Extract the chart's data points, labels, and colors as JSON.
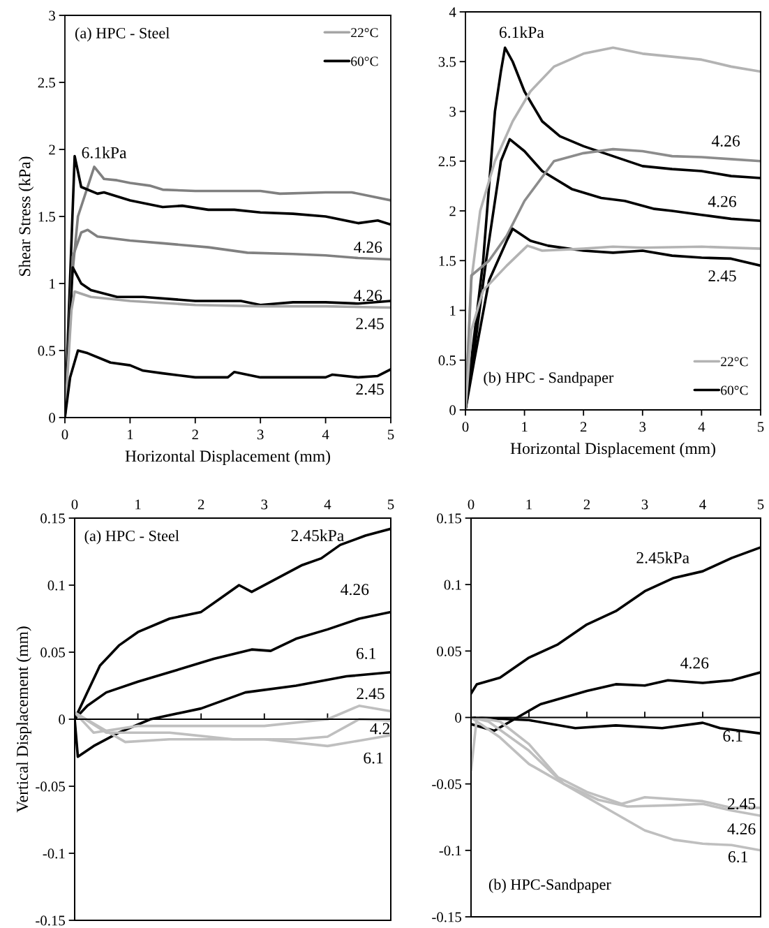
{
  "chart_data": [
    {
      "type": "line",
      "title": "(a) HPC - Steel",
      "xlabel": "Horizontal Displacement (mm)",
      "ylabel": "Shear Stress (kPa)",
      "xlim": [
        0,
        5
      ],
      "ylim": [
        0,
        3
      ],
      "xticks": [
        0,
        1,
        2,
        3,
        4,
        5
      ],
      "yticks": [
        0,
        0.5,
        1,
        1.5,
        2,
        2.5,
        3
      ],
      "legend": "top right",
      "grid": false,
      "series": [
        {
          "color": "#808080",
          "x": [
            0,
            0.1,
            0.2,
            0.45,
            0.6,
            0.8,
            1,
            1.3,
            1.5,
            2,
            3,
            3.3,
            4,
            4.4,
            5
          ],
          "values": [
            0,
            1.0,
            1.5,
            1.87,
            1.78,
            1.77,
            1.75,
            1.73,
            1.7,
            1.69,
            1.69,
            1.67,
            1.68,
            1.68,
            1.62
          ]
        },
        {
          "name": "60°C",
          "color": "#000000",
          "x": [
            0,
            0.15,
            0.25,
            0.5,
            0.6,
            1,
            1.5,
            1.8,
            2.2,
            2.6,
            3,
            3.5,
            4,
            4.5,
            4.8,
            5
          ],
          "values": [
            0,
            1.95,
            1.72,
            1.67,
            1.68,
            1.62,
            1.57,
            1.58,
            1.55,
            1.55,
            1.53,
            1.52,
            1.5,
            1.45,
            1.47,
            1.44
          ]
        },
        {
          "color": "#808080",
          "x": [
            0,
            0.12,
            0.25,
            0.35,
            0.5,
            1,
            1.5,
            2.2,
            2.8,
            3.5,
            4,
            4.5,
            5
          ],
          "values": [
            0,
            1.2,
            1.38,
            1.4,
            1.35,
            1.32,
            1.3,
            1.27,
            1.23,
            1.22,
            1.21,
            1.19,
            1.18
          ]
        },
        {
          "color": "#000000",
          "x": [
            0,
            0.12,
            0.25,
            0.4,
            0.8,
            1.2,
            2,
            2.7,
            3,
            3.5,
            4,
            4.5,
            5
          ],
          "values": [
            0,
            1.12,
            1.0,
            0.95,
            0.9,
            0.9,
            0.87,
            0.87,
            0.84,
            0.86,
            0.86,
            0.85,
            0.87
          ]
        },
        {
          "name": "22°C",
          "color": "#a6a6a6",
          "x": [
            0,
            0.1,
            0.15,
            0.4,
            1,
            2,
            3,
            4,
            5
          ],
          "values": [
            0,
            0.8,
            0.94,
            0.9,
            0.87,
            0.84,
            0.83,
            0.83,
            0.82
          ]
        },
        {
          "color": "#000000",
          "x": [
            0,
            0.08,
            0.2,
            0.35,
            0.7,
            1,
            1.2,
            1.5,
            2,
            2.5,
            2.6,
            3,
            3.5,
            4,
            4.1,
            4.5,
            4.8,
            5
          ],
          "values": [
            0,
            0.3,
            0.5,
            0.48,
            0.41,
            0.39,
            0.35,
            0.33,
            0.3,
            0.3,
            0.34,
            0.3,
            0.3,
            0.3,
            0.32,
            0.3,
            0.31,
            0.36
          ]
        }
      ],
      "annotations": [
        "6.1kPa",
        "4.26",
        "4.26",
        "2.45",
        "2.45"
      ]
    },
    {
      "type": "line",
      "title": "(b) HPC - Sandpaper",
      "xlabel": "Horizontal Displacement (mm)",
      "xlim": [
        0,
        5
      ],
      "ylim": [
        0,
        4
      ],
      "xticks": [
        0,
        1,
        2,
        3,
        4,
        5
      ],
      "yticks": [
        0,
        0.5,
        1,
        1.5,
        2,
        2.5,
        3,
        3.5,
        4
      ],
      "legend": "bottom right",
      "grid": false,
      "series": [
        {
          "color": "#000000",
          "x": [
            0,
            0.1,
            0.3,
            0.5,
            0.6,
            0.67,
            0.8,
            1.0,
            1.3,
            1.6,
            2.0,
            2.5,
            3.0,
            3.5,
            4,
            4.5,
            5
          ],
          "values": [
            0,
            0.5,
            1.5,
            3.0,
            3.4,
            3.64,
            3.5,
            3.2,
            2.9,
            2.75,
            2.65,
            2.55,
            2.45,
            2.42,
            2.4,
            2.35,
            2.33
          ]
        },
        {
          "name": "22°C",
          "color": "#b3b3b3",
          "x": [
            0,
            0.1,
            0.25,
            0.5,
            0.8,
            1.1,
            1.5,
            2.0,
            2.5,
            3.0,
            3.5,
            4,
            4.5,
            5
          ],
          "values": [
            0,
            1.3,
            2.0,
            2.5,
            2.9,
            3.2,
            3.45,
            3.58,
            3.64,
            3.58,
            3.55,
            3.52,
            3.45,
            3.4
          ]
        },
        {
          "color": "#000000",
          "x": [
            0,
            0.15,
            0.35,
            0.6,
            0.75,
            1.0,
            1.3,
            1.8,
            2.3,
            2.7,
            3.2,
            3.5,
            4,
            4.5,
            5
          ],
          "values": [
            0,
            0.6,
            1.5,
            2.5,
            2.72,
            2.6,
            2.4,
            2.22,
            2.13,
            2.1,
            2.02,
            2.0,
            1.96,
            1.92,
            1.9
          ]
        },
        {
          "color": "#8c8c8c",
          "x": [
            0,
            0.1,
            0.2,
            0.4,
            0.7,
            1.0,
            1.5,
            2.0,
            2.5,
            3,
            3.5,
            4,
            4.5,
            5
          ],
          "values": [
            0,
            1.35,
            1.4,
            1.5,
            1.75,
            2.1,
            2.5,
            2.58,
            2.62,
            2.6,
            2.55,
            2.54,
            2.52,
            2.5
          ]
        },
        {
          "name": "60°C",
          "color": "#000000",
          "x": [
            0,
            0.15,
            0.4,
            0.7,
            0.8,
            1.1,
            1.4,
            2.0,
            2.5,
            3,
            3.5,
            4,
            4.5,
            5
          ],
          "values": [
            0,
            0.5,
            1.3,
            1.7,
            1.82,
            1.7,
            1.65,
            1.6,
            1.58,
            1.6,
            1.55,
            1.53,
            1.52,
            1.45
          ]
        },
        {
          "color": "#b3b3b3",
          "x": [
            0,
            0.1,
            0.3,
            0.7,
            1.05,
            1.3,
            2,
            2.5,
            3,
            4,
            5
          ],
          "values": [
            0,
            0.8,
            1.2,
            1.45,
            1.65,
            1.6,
            1.62,
            1.64,
            1.63,
            1.64,
            1.62
          ]
        }
      ],
      "annotations": [
        "6.1kPa",
        "4.26",
        "4.26",
        "2.45"
      ]
    },
    {
      "type": "line",
      "title": "(a) HPC - Steel",
      "ylabel": "Vertical Displacement (mm)",
      "ref_lines": [
        {
          "axis": "y",
          "value": 0,
          "color": "#000000"
        }
      ],
      "xlim": [
        0,
        5
      ],
      "ylim": [
        -0.15,
        0.15
      ],
      "xticks": [
        0,
        1,
        2,
        3,
        4,
        5
      ],
      "yticks": [
        -0.15,
        -0.1,
        -0.05,
        0,
        0.05,
        0.1,
        0.15
      ],
      "grid": false,
      "series": [
        {
          "color": "#000000",
          "x": [
            0,
            0.2,
            0.4,
            0.7,
            1.0,
            1.5,
            2.0,
            2.3,
            2.6,
            2.8,
            3.2,
            3.6,
            3.9,
            4.2,
            4.6,
            5
          ],
          "values": [
            0,
            0.02,
            0.04,
            0.055,
            0.065,
            0.075,
            0.08,
            0.09,
            0.1,
            0.095,
            0.105,
            0.115,
            0.12,
            0.13,
            0.137,
            0.142
          ]
        },
        {
          "color": "#000000",
          "x": [
            0,
            0.2,
            0.5,
            1.0,
            1.5,
            2.2,
            2.8,
            3.1,
            3.5,
            4,
            4.5,
            5
          ],
          "values": [
            0,
            0.01,
            0.02,
            0.028,
            0.035,
            0.045,
            0.052,
            0.051,
            0.06,
            0.067,
            0.075,
            0.08
          ]
        },
        {
          "color": "#000000",
          "x": [
            0,
            0.05,
            0.3,
            0.7,
            1.2,
            2.0,
            2.7,
            3.5,
            4.3,
            5
          ],
          "values": [
            0,
            -0.028,
            -0.02,
            -0.01,
            0,
            0.008,
            0.02,
            0.025,
            0.032,
            0.035
          ]
        },
        {
          "color": "#bfbfbf",
          "x": [
            0,
            0.3,
            1,
            2,
            3,
            4,
            4.5,
            5
          ],
          "values": [
            0.005,
            -0.01,
            -0.005,
            -0.005,
            -0.005,
            0,
            0.01,
            0.006
          ]
        },
        {
          "color": "#bfbfbf",
          "x": [
            0,
            0.5,
            1.5,
            2.5,
            3.5,
            4,
            4.5,
            5
          ],
          "values": [
            0.005,
            -0.01,
            -0.01,
            -0.015,
            -0.015,
            -0.013,
            0,
            -0.001
          ]
        },
        {
          "color": "#bfbfbf",
          "x": [
            0,
            0.8,
            1.5,
            3,
            4,
            4.5,
            5
          ],
          "values": [
            0.005,
            -0.017,
            -0.015,
            -0.015,
            -0.02,
            -0.016,
            -0.012
          ]
        }
      ],
      "annotations": [
        "2.45kPa",
        "4.26",
        "6.1",
        "2.45",
        "4.2",
        "6.1"
      ]
    },
    {
      "type": "line",
      "title": "(b) HPC-Sandpaper",
      "ref_lines": [
        {
          "axis": "y",
          "value": 0,
          "color": "#000000"
        }
      ],
      "xlim": [
        0,
        5
      ],
      "ylim": [
        -0.15,
        0.15
      ],
      "xticks": [
        0,
        1,
        2,
        3,
        4,
        5
      ],
      "yticks": [
        -0.15,
        -0.1,
        -0.05,
        0,
        0.05,
        0.1,
        0.15
      ],
      "grid": false,
      "series": [
        {
          "color": "#000000",
          "x": [
            0,
            0.1,
            0.5,
            1.0,
            1.5,
            2.0,
            2.5,
            3.0,
            3.5,
            4,
            4.5,
            5
          ],
          "values": [
            0.018,
            0.025,
            0.03,
            0.045,
            0.055,
            0.07,
            0.08,
            0.095,
            0.105,
            0.11,
            0.12,
            0.128
          ]
        },
        {
          "color": "#000000",
          "x": [
            0,
            0.4,
            0.8,
            1.2,
            2.0,
            2.5,
            3.0,
            3.4,
            4,
            4.5,
            5
          ],
          "values": [
            -0.005,
            -0.01,
            0,
            0.01,
            0.02,
            0.025,
            0.024,
            0.028,
            0.026,
            0.028,
            0.034
          ]
        },
        {
          "color": "#000000",
          "x": [
            0,
            1,
            1.8,
            2.5,
            3.3,
            4.0,
            4.3,
            5
          ],
          "values": [
            0,
            -0.002,
            -0.008,
            -0.006,
            -0.008,
            -0.004,
            -0.008,
            -0.012
          ]
        },
        {
          "color": "#bfbfbf",
          "x": [
            0,
            0.1,
            0.5,
            1.0,
            1.5,
            2,
            2.6,
            3.0,
            4.0,
            4.5,
            5
          ],
          "values": [
            -0.04,
            0,
            -0.003,
            -0.02,
            -0.045,
            -0.056,
            -0.065,
            -0.06,
            -0.063,
            -0.068,
            -0.068
          ]
        },
        {
          "color": "#bfbfbf",
          "x": [
            0,
            0.3,
            1.0,
            1.6,
            2.2,
            2.7,
            3.5,
            4.0,
            4.5,
            5
          ],
          "values": [
            0,
            -0.003,
            -0.025,
            -0.05,
            -0.062,
            -0.067,
            -0.066,
            -0.065,
            -0.07,
            -0.074
          ]
        },
        {
          "color": "#bfbfbf",
          "x": [
            0,
            0.5,
            1.0,
            1.8,
            2.4,
            3.0,
            3.5,
            4.0,
            4.5,
            5
          ],
          "values": [
            0,
            -0.015,
            -0.035,
            -0.055,
            -0.07,
            -0.085,
            -0.092,
            -0.095,
            -0.096,
            -0.1
          ]
        }
      ],
      "annotations": [
        "2.45kPa",
        "4.26",
        "6.1",
        "2.45",
        "4.26",
        "6.1"
      ]
    }
  ]
}
